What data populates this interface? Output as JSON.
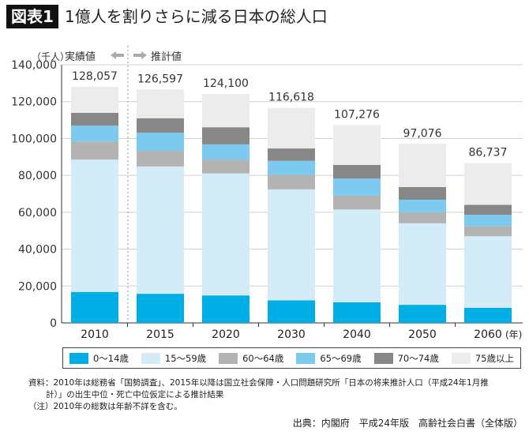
{
  "figure_label": "図表1",
  "title": "1億人を割りさらに減る日本の総人口",
  "chart_data": {
    "type": "bar",
    "stacked": true,
    "title": "1億人を割りさらに減る日本の総人口",
    "unit_label": "（千人）",
    "categories": [
      "2010",
      "2015",
      "2020",
      "2030",
      "2040",
      "2050",
      "2060"
    ],
    "x_unit_label": "(年)",
    "ylim": [
      0,
      140000
    ],
    "yticks": [
      "0",
      "20,000",
      "40,000",
      "60,000",
      "80,000",
      "100,000",
      "120,000",
      "140,000"
    ],
    "ytick_values": [
      0,
      20000,
      40000,
      60000,
      80000,
      100000,
      120000,
      140000
    ],
    "grid": true,
    "annotations": {
      "actual": "実績値",
      "projected": "推計値"
    },
    "totals": [
      128057,
      126597,
      124100,
      116618,
      107276,
      97076,
      86737
    ],
    "total_labels": [
      "128,057",
      "126,597",
      "124,100",
      "116,618",
      "107,276",
      "97,076",
      "86,737"
    ],
    "series": [
      {
        "name": "0〜14歳",
        "color": "#00aee6",
        "values": [
          16800,
          15800,
          14900,
          12200,
          11200,
          9800,
          8200
        ]
      },
      {
        "name": "15〜59歳",
        "color": "#d4ebf8",
        "values": [
          71800,
          69000,
          66200,
          60200,
          50300,
          44200,
          38800
        ]
      },
      {
        "name": "60〜64歳",
        "color": "#b3b3b3",
        "values": [
          9800,
          8500,
          7500,
          7900,
          7600,
          5900,
          5400
        ]
      },
      {
        "name": "65〜69歳",
        "color": "#7ccaf0",
        "values": [
          8600,
          9800,
          8200,
          7600,
          9200,
          6900,
          6200
        ]
      },
      {
        "name": "70〜74歳",
        "color": "#878787",
        "values": [
          6900,
          7900,
          9300,
          6700,
          7400,
          6900,
          5400
        ]
      },
      {
        "name": "75歳以上",
        "color": "#ececec",
        "values": [
          14200,
          15600,
          18000,
          22000,
          21600,
          23400,
          22700
        ]
      }
    ],
    "legend_position": "bottom"
  },
  "notes": {
    "line1": "資料：2010年は総務省「国勢調査」、2015年以降は国立社会保障・人口問題研究所「日本の将来推計人口（平成24年1月推",
    "line2": "計）」の出生中位・死亡中位仮定による推計結果",
    "line3": "（注）2010年の総数は年齢不詳を含む。"
  },
  "source": "出典：内閣府　平成24年版　高齢社会白書（全体版）"
}
